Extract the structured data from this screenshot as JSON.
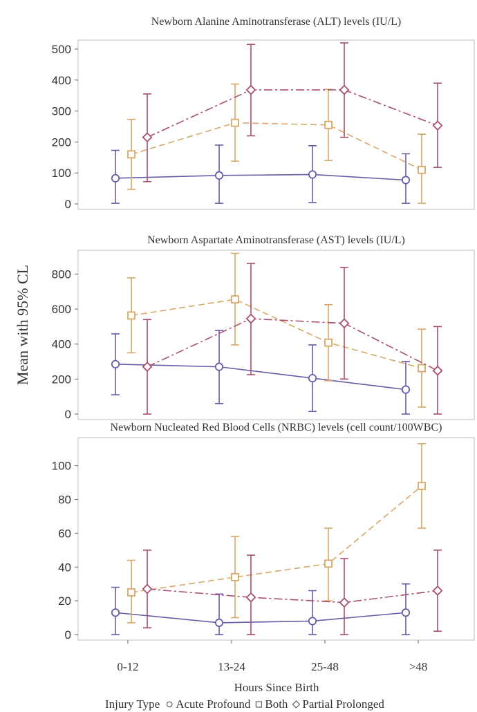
{
  "figure": {
    "ylabel": "Mean with 95% CL",
    "xlabel": "Hours Since Birth",
    "categories": [
      "0-12",
      "13-24",
      "25-48",
      ">48"
    ],
    "legend": {
      "title": "Injury Type",
      "items": [
        {
          "marker": "circle",
          "label": "Acute Profound"
        },
        {
          "marker": "square",
          "label": "Both"
        },
        {
          "marker": "diamond",
          "label": "Partial Prolonged"
        }
      ]
    },
    "colors": {
      "Acute Profound": "#6a5aa8",
      "Both": "#d8a766",
      "Partial Prolonged": "#a84f6e"
    }
  },
  "chart_data": [
    {
      "type": "line",
      "title": "Newborn Alanine Aminotransferase (ALT) levels (IU/L)",
      "categories": [
        "0-12",
        "13-24",
        "25-48",
        ">48"
      ],
      "ylim": [
        0,
        520
      ],
      "yticks": [
        0,
        100,
        200,
        300,
        400,
        500
      ],
      "series": [
        {
          "name": "Acute Profound",
          "marker": "circle",
          "values": [
            83,
            92,
            95,
            77
          ],
          "lower": [
            2,
            2,
            4,
            2
          ],
          "upper": [
            173,
            190,
            188,
            162
          ]
        },
        {
          "name": "Both",
          "marker": "square",
          "values": [
            160,
            262,
            255,
            110
          ],
          "lower": [
            47,
            138,
            140,
            2
          ],
          "upper": [
            273,
            387,
            370,
            225
          ]
        },
        {
          "name": "Partial Prolonged",
          "marker": "diamond",
          "values": [
            215,
            368,
            368,
            253
          ],
          "lower": [
            72,
            220,
            215,
            118
          ],
          "upper": [
            355,
            515,
            520,
            390
          ]
        }
      ]
    },
    {
      "type": "line",
      "title": "Newborn Aspartate Aminotransferase (AST) levels (IU/L)",
      "categories": [
        "0-12",
        "13-24",
        "25-48",
        ">48"
      ],
      "ylim": [
        0,
        920
      ],
      "yticks": [
        0,
        200,
        400,
        600,
        800
      ],
      "series": [
        {
          "name": "Acute Profound",
          "marker": "circle",
          "values": [
            285,
            270,
            205,
            140
          ],
          "lower": [
            110,
            60,
            15,
            0
          ],
          "upper": [
            458,
            478,
            395,
            300
          ]
        },
        {
          "name": "Both",
          "marker": "square",
          "values": [
            563,
            655,
            408,
            262
          ],
          "lower": [
            350,
            395,
            190,
            40
          ],
          "upper": [
            778,
            918,
            625,
            485
          ]
        },
        {
          "name": "Partial Prolonged",
          "marker": "diamond",
          "values": [
            270,
            545,
            518,
            248
          ],
          "lower": [
            0,
            225,
            200,
            0
          ],
          "upper": [
            540,
            860,
            838,
            500
          ]
        }
      ]
    },
    {
      "type": "line",
      "title": "Newborn Nucleated Red Blood Cells (NRBC) levels (cell count/100WBC)",
      "categories": [
        "0-12",
        "13-24",
        "25-48",
        ">48"
      ],
      "ylim": [
        0,
        115
      ],
      "yticks": [
        0,
        20,
        40,
        60,
        80,
        100
      ],
      "series": [
        {
          "name": "Acute Profound",
          "marker": "circle",
          "values": [
            13,
            7,
            8,
            13
          ],
          "lower": [
            0,
            0,
            0,
            0
          ],
          "upper": [
            28,
            24,
            26,
            30
          ]
        },
        {
          "name": "Both",
          "marker": "square",
          "values": [
            25,
            34,
            42,
            88
          ],
          "lower": [
            7,
            10,
            20,
            63
          ],
          "upper": [
            44,
            58,
            63,
            113
          ]
        },
        {
          "name": "Partial Prolonged",
          "marker": "diamond",
          "values": [
            27,
            22,
            19,
            26
          ],
          "lower": [
            4,
            0,
            0,
            2
          ],
          "upper": [
            50,
            47,
            45,
            50
          ]
        }
      ]
    }
  ]
}
